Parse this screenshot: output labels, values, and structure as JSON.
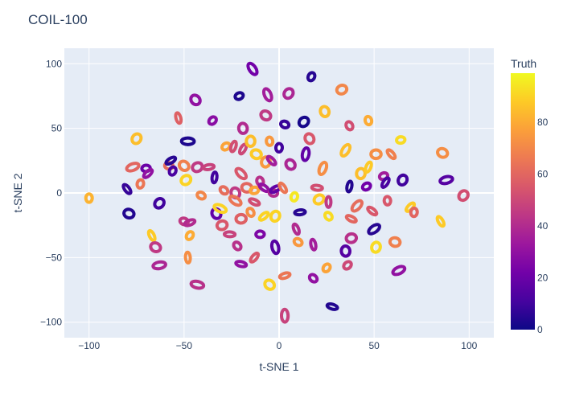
{
  "chart_data": {
    "type": "scatter",
    "title": "COIL-100",
    "xlabel": "t-SNE 1",
    "ylabel": "t-SNE 2",
    "xlim": [
      -113,
      113
    ],
    "ylim": [
      -112,
      112
    ],
    "xticks": [
      -100,
      -50,
      0,
      50,
      100
    ],
    "yticks": [
      -100,
      -50,
      0,
      50,
      100
    ],
    "xtick_labels": [
      "−100",
      "−50",
      "0",
      "50",
      "100"
    ],
    "ytick_labels": [
      "−100",
      "−50",
      "0",
      "50",
      "100"
    ],
    "grid": true,
    "colorbar": {
      "title": "Truth",
      "range": [
        0,
        99
      ],
      "ticks": [
        0,
        20,
        40,
        60,
        80
      ],
      "tick_labels": [
        "0",
        "20",
        "40",
        "60",
        "80"
      ],
      "colorscale": [
        "#0d0887",
        "#46039f",
        "#7201a8",
        "#9c179e",
        "#bd3786",
        "#d8576b",
        "#ed7953",
        "#fb9f3a",
        "#fdca26",
        "#f0f921"
      ]
    },
    "clusters": [
      {
        "x": -100,
        "y": -4,
        "truth": 82
      },
      {
        "x": -80,
        "y": 3,
        "truth": 8
      },
      {
        "x": -79,
        "y": -16,
        "truth": 4
      },
      {
        "x": -77,
        "y": 20,
        "truth": 60
      },
      {
        "x": -75,
        "y": 42,
        "truth": 85
      },
      {
        "x": -70,
        "y": 19,
        "truth": 20
      },
      {
        "x": -69,
        "y": 15,
        "truth": 30
      },
      {
        "x": -73,
        "y": 7,
        "truth": 65
      },
      {
        "x": -67,
        "y": -33,
        "truth": 88
      },
      {
        "x": -65,
        "y": -42,
        "truth": 45
      },
      {
        "x": -63,
        "y": -56,
        "truth": 38
      },
      {
        "x": -63,
        "y": -8,
        "truth": 10
      },
      {
        "x": -58,
        "y": 21,
        "truth": 62
      },
      {
        "x": -57,
        "y": 25,
        "truth": 5
      },
      {
        "x": -56,
        "y": 17,
        "truth": 12
      },
      {
        "x": -53,
        "y": 58,
        "truth": 58
      },
      {
        "x": -50,
        "y": 21,
        "truth": 68
      },
      {
        "x": -48,
        "y": 40,
        "truth": 3
      },
      {
        "x": -49,
        "y": 10,
        "truth": 90
      },
      {
        "x": -50,
        "y": -22,
        "truth": 45
      },
      {
        "x": -47,
        "y": -23,
        "truth": 40
      },
      {
        "x": -47,
        "y": -33,
        "truth": 80
      },
      {
        "x": -48,
        "y": -50,
        "truth": 72
      },
      {
        "x": -44,
        "y": 72,
        "truth": 30
      },
      {
        "x": -43,
        "y": -71,
        "truth": 42
      },
      {
        "x": -43,
        "y": 20,
        "truth": 45
      },
      {
        "x": -41,
        "y": -2,
        "truth": 70
      },
      {
        "x": -37,
        "y": 20,
        "truth": 48
      },
      {
        "x": -35,
        "y": 56,
        "truth": 28
      },
      {
        "x": -34,
        "y": 12,
        "truth": 10
      },
      {
        "x": -33,
        "y": -16,
        "truth": 18
      },
      {
        "x": -31,
        "y": -12,
        "truth": 90
      },
      {
        "x": -30,
        "y": -25,
        "truth": 55
      },
      {
        "x": -29,
        "y": 2,
        "truth": 62
      },
      {
        "x": -26,
        "y": -32,
        "truth": 48
      },
      {
        "x": -28,
        "y": 36,
        "truth": 78
      },
      {
        "x": -24,
        "y": 36,
        "truth": 52
      },
      {
        "x": -23,
        "y": 0,
        "truth": 45
      },
      {
        "x": -23,
        "y": -6,
        "truth": 65
      },
      {
        "x": -20,
        "y": -20,
        "truth": 58
      },
      {
        "x": -22,
        "y": -41,
        "truth": 42
      },
      {
        "x": -20,
        "y": -55,
        "truth": 30
      },
      {
        "x": -21,
        "y": 75,
        "truth": 3
      },
      {
        "x": -19,
        "y": 34,
        "truth": 50
      },
      {
        "x": -19,
        "y": 50,
        "truth": 40
      },
      {
        "x": -20,
        "y": 15,
        "truth": 55
      },
      {
        "x": -17,
        "y": 4,
        "truth": 60
      },
      {
        "x": -15,
        "y": -15,
        "truth": 72
      },
      {
        "x": -13,
        "y": -7,
        "truth": 52
      },
      {
        "x": -13,
        "y": 2,
        "truth": 78
      },
      {
        "x": -13,
        "y": -50,
        "truth": 55
      },
      {
        "x": -15,
        "y": 40,
        "truth": 85
      },
      {
        "x": -14,
        "y": 96,
        "truth": 22
      },
      {
        "x": -12,
        "y": 30,
        "truth": 88
      },
      {
        "x": -10,
        "y": 9,
        "truth": 42
      },
      {
        "x": -8,
        "y": 4,
        "truth": 30
      },
      {
        "x": -10,
        "y": -32,
        "truth": 25
      },
      {
        "x": -8,
        "y": -18,
        "truth": 90
      },
      {
        "x": -7,
        "y": 24,
        "truth": 75
      },
      {
        "x": -6,
        "y": 76,
        "truth": 35
      },
      {
        "x": -7,
        "y": 60,
        "truth": 45
      },
      {
        "x": -5,
        "y": 40,
        "truth": 75
      },
      {
        "x": -4,
        "y": 25,
        "truth": 35
      },
      {
        "x": -3,
        "y": 0,
        "truth": 40
      },
      {
        "x": -2,
        "y": 3,
        "truth": 18
      },
      {
        "x": -2,
        "y": -18,
        "truth": 90
      },
      {
        "x": -2,
        "y": -42,
        "truth": 15
      },
      {
        "x": -5,
        "y": -71,
        "truth": 90
      },
      {
        "x": 0,
        "y": 35,
        "truth": 10
      },
      {
        "x": 2,
        "y": 4,
        "truth": 65
      },
      {
        "x": 3,
        "y": 53,
        "truth": 8
      },
      {
        "x": 3,
        "y": -64,
        "truth": 65
      },
      {
        "x": 5,
        "y": 77,
        "truth": 38
      },
      {
        "x": 3,
        "y": -95,
        "truth": 48
      },
      {
        "x": 6,
        "y": 22,
        "truth": 38
      },
      {
        "x": 8,
        "y": -3,
        "truth": 95
      },
      {
        "x": 9,
        "y": -28,
        "truth": 40
      },
      {
        "x": 10,
        "y": -38,
        "truth": 75
      },
      {
        "x": 11,
        "y": -15,
        "truth": 5
      },
      {
        "x": 13,
        "y": 55,
        "truth": 2
      },
      {
        "x": 14,
        "y": 30,
        "truth": 18
      },
      {
        "x": 16,
        "y": 42,
        "truth": 55
      },
      {
        "x": 17,
        "y": 90,
        "truth": 5
      },
      {
        "x": 18,
        "y": -40,
        "truth": 35
      },
      {
        "x": 18,
        "y": -66,
        "truth": 30
      },
      {
        "x": 20,
        "y": 4,
        "truth": 52
      },
      {
        "x": 21,
        "y": -5,
        "truth": 88
      },
      {
        "x": 23,
        "y": 19,
        "truth": 72
      },
      {
        "x": 24,
        "y": 63,
        "truth": 85
      },
      {
        "x": 25,
        "y": -58,
        "truth": 78
      },
      {
        "x": 26,
        "y": -7,
        "truth": 45
      },
      {
        "x": 26,
        "y": -18,
        "truth": 92
      },
      {
        "x": 28,
        "y": -88,
        "truth": 4
      },
      {
        "x": 33,
        "y": 80,
        "truth": 70
      },
      {
        "x": 35,
        "y": 33,
        "truth": 85
      },
      {
        "x": 35,
        "y": -45,
        "truth": 15
      },
      {
        "x": 36,
        "y": -56,
        "truth": 50
      },
      {
        "x": 37,
        "y": 5,
        "truth": 4
      },
      {
        "x": 37,
        "y": 52,
        "truth": 52
      },
      {
        "x": 38,
        "y": -20,
        "truth": 60
      },
      {
        "x": 38,
        "y": -35,
        "truth": 42
      },
      {
        "x": 41,
        "y": -10,
        "truth": 62
      },
      {
        "x": 43,
        "y": 15,
        "truth": 85
      },
      {
        "x": 46,
        "y": 5,
        "truth": 22
      },
      {
        "x": 47,
        "y": 20,
        "truth": 88
      },
      {
        "x": 47,
        "y": 56,
        "truth": 80
      },
      {
        "x": 49,
        "y": -14,
        "truth": 55
      },
      {
        "x": 51,
        "y": 30,
        "truth": 72
      },
      {
        "x": 50,
        "y": -28,
        "truth": 5
      },
      {
        "x": 51,
        "y": -42,
        "truth": 92
      },
      {
        "x": 55,
        "y": 13,
        "truth": 35
      },
      {
        "x": 56,
        "y": 8,
        "truth": 12
      },
      {
        "x": 57,
        "y": -6,
        "truth": 55
      },
      {
        "x": 59,
        "y": 30,
        "truth": 68
      },
      {
        "x": 61,
        "y": -38,
        "truth": 68
      },
      {
        "x": 63,
        "y": -60,
        "truth": 30
      },
      {
        "x": 65,
        "y": 10,
        "truth": 10
      },
      {
        "x": 64,
        "y": 41,
        "truth": 92
      },
      {
        "x": 69,
        "y": -11,
        "truth": 88
      },
      {
        "x": 71,
        "y": -15,
        "truth": 60
      },
      {
        "x": 85,
        "y": -22,
        "truth": 88
      },
      {
        "x": 86,
        "y": 31,
        "truth": 72
      },
      {
        "x": 88,
        "y": 10,
        "truth": 15
      },
      {
        "x": 97,
        "y": -2,
        "truth": 52
      }
    ]
  }
}
